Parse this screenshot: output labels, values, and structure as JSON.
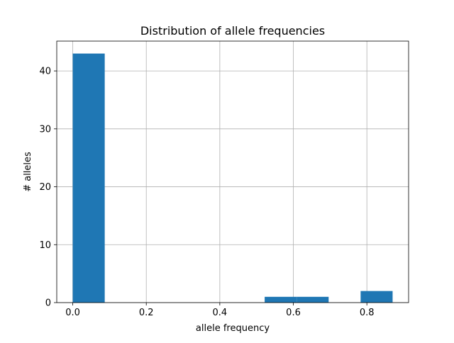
{
  "chart_data": {
    "type": "bar",
    "title": "Distribution of allele frequencies",
    "xlabel": "allele frequency",
    "ylabel": "# alleles",
    "histogram": true,
    "bins": [
      {
        "x0": 0.0,
        "x1": 0.087,
        "count": 43
      },
      {
        "x0": 0.087,
        "x1": 0.174,
        "count": 0
      },
      {
        "x0": 0.174,
        "x1": 0.261,
        "count": 0
      },
      {
        "x0": 0.261,
        "x1": 0.348,
        "count": 0
      },
      {
        "x0": 0.348,
        "x1": 0.435,
        "count": 0
      },
      {
        "x0": 0.435,
        "x1": 0.522,
        "count": 0
      },
      {
        "x0": 0.522,
        "x1": 0.609,
        "count": 1
      },
      {
        "x0": 0.609,
        "x1": 0.696,
        "count": 1
      },
      {
        "x0": 0.696,
        "x1": 0.783,
        "count": 0
      },
      {
        "x0": 0.783,
        "x1": 0.87,
        "count": 2
      }
    ],
    "xlim": [
      -0.0435,
      0.9135
    ],
    "ylim": [
      0,
      45.15
    ],
    "x_ticks": [
      0.0,
      0.2,
      0.4,
      0.6,
      0.8
    ],
    "x_tick_labels": [
      "0.0",
      "0.2",
      "0.4",
      "0.6",
      "0.8"
    ],
    "y_ticks": [
      0,
      10,
      20,
      30,
      40
    ],
    "y_tick_labels": [
      "0",
      "10",
      "20",
      "30",
      "40"
    ],
    "grid": true,
    "legend": "none",
    "bar_color": "#1f77b4",
    "grid_color": "#b0b0b0"
  }
}
